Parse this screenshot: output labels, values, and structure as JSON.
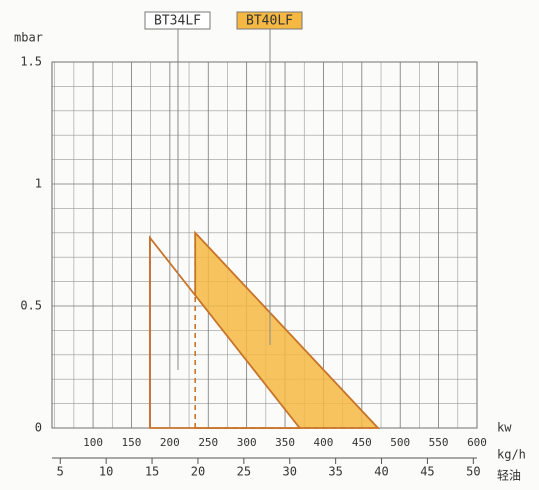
{
  "chart_data": {
    "type": "area-range",
    "y_label": "mbar",
    "x_label": "kw",
    "x2_label": "kg/h",
    "x2_sublabel": "轻油",
    "xlim": [
      46.5,
      600
    ],
    "xticks": [
      100,
      150,
      200,
      250,
      300,
      350,
      400,
      450,
      500,
      550,
      600
    ],
    "x2lim": [
      4.1,
      50.4
    ],
    "x2ticks": [
      5,
      10,
      15,
      20,
      25,
      30,
      35,
      40,
      45,
      50
    ],
    "ylim": [
      0,
      1.5
    ],
    "yticks": [
      0,
      0.5,
      1,
      1.5
    ],
    "grid": true,
    "series": [
      {
        "name": "BT34LF",
        "color": "#c8742a",
        "fill": "none",
        "x": [
          174,
          174,
          369
        ],
        "values": [
          0,
          0.78,
          0
        ]
      },
      {
        "name": "BT40LF",
        "color": "#c8742a",
        "fill": "#f4b843",
        "x": [
          233,
          233,
          471
        ],
        "values": [
          0,
          0.8,
          0
        ]
      }
    ]
  }
}
